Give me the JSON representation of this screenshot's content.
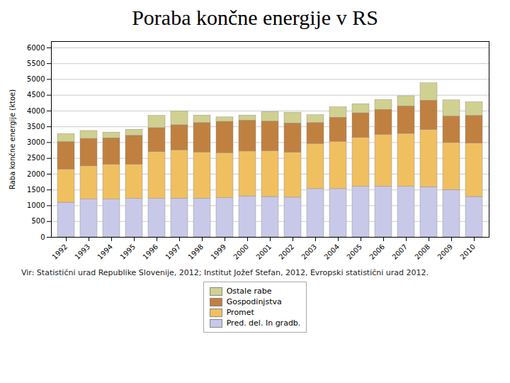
{
  "chart_data": {
    "type": "bar",
    "stacked": true,
    "title": "Poraba končne energije v RS",
    "subtitle": "Vir: Statistični urad Republike Slovenije, 2012; Institut Jožef Stefan, 2012, Evropski statistični urad 2012.",
    "ylabel": "Raba končne energije (ktoe)",
    "categories": [
      "1992",
      "1993",
      "1994",
      "1995",
      "1996",
      "1997",
      "1998",
      "1999",
      "2000",
      "2001",
      "2002",
      "2003",
      "2004",
      "2005",
      "2006",
      "2007",
      "2008",
      "2009",
      "2010"
    ],
    "series": [
      {
        "name": "Pred. del. In gradb.",
        "color": "#c8c8e8",
        "values": [
          1100,
          1200,
          1200,
          1220,
          1220,
          1230,
          1230,
          1240,
          1300,
          1280,
          1260,
          1530,
          1530,
          1600,
          1610,
          1600,
          1590,
          1500,
          1280
        ]
      },
      {
        "name": "Promet",
        "color": "#f0c060",
        "values": [
          1050,
          1050,
          1100,
          1080,
          1480,
          1530,
          1460,
          1430,
          1420,
          1450,
          1420,
          1430,
          1500,
          1550,
          1640,
          1680,
          1810,
          1490,
          1690
        ]
      },
      {
        "name": "Gospodinjstva",
        "color": "#c08040",
        "values": [
          870,
          870,
          840,
          920,
          760,
          790,
          930,
          990,
          980,
          940,
          930,
          660,
          760,
          780,
          790,
          870,
          930,
          840,
          880
        ]
      },
      {
        "name": "Ostale rabe",
        "color": "#d0d090",
        "values": [
          250,
          250,
          180,
          190,
          390,
          440,
          240,
          140,
          160,
          300,
          340,
          250,
          330,
          290,
          310,
          320,
          550,
          510,
          430
        ]
      }
    ],
    "ylim": [
      0,
      6200
    ],
    "yticks": [
      0,
      500,
      1000,
      1500,
      2000,
      2500,
      3000,
      3500,
      4000,
      4500,
      5000,
      5500,
      6000
    ],
    "grid": true,
    "legend": "bottom"
  }
}
